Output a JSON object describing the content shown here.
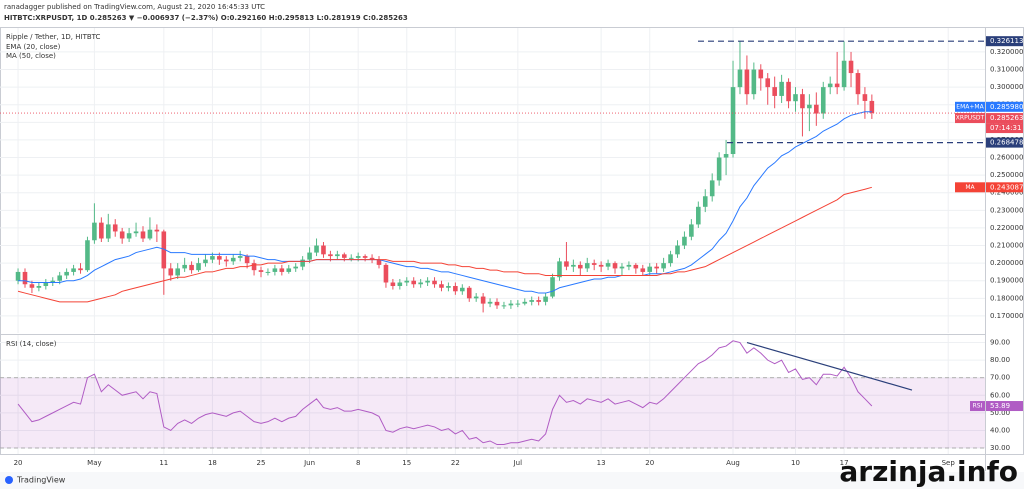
{
  "header": {
    "author_line": "ranadagger published on TradingView.com, August 21, 2020 16:45:33 UTC",
    "symbol_line": "HITBTC:XRPUSDT, 1D 0.285263 ▼ −0.006937 (−2.37%) O:0.292160 H:0.295813 L:0.281919 C:0.285263"
  },
  "footer": {
    "brand": "TradingView",
    "watermark": "arzinja.info"
  },
  "chart_data": [
    {
      "type": "candlestick",
      "title": "Ripple / Tether, 1D, HITBTC",
      "xlim": [
        -2.6,
        139.3
      ],
      "xticks": [
        {
          "value": 0,
          "label": "20"
        },
        {
          "value": 11,
          "label": "May"
        },
        {
          "value": 21,
          "label": "11"
        },
        {
          "value": 28,
          "label": "18"
        },
        {
          "value": 35,
          "label": "25"
        },
        {
          "value": 42,
          "label": "Jun"
        },
        {
          "value": 49,
          "label": "8"
        },
        {
          "value": 56,
          "label": "15"
        },
        {
          "value": 63,
          "label": "22"
        },
        {
          "value": 72,
          "label": "Jul"
        },
        {
          "value": 84,
          "label": "13"
        },
        {
          "value": 91,
          "label": "20"
        },
        {
          "value": 103,
          "label": "Aug"
        },
        {
          "value": 112,
          "label": "10"
        },
        {
          "value": 119,
          "label": "17"
        },
        {
          "value": 134,
          "label": "Sep"
        }
      ],
      "ylim": [
        0.1603,
        0.3336
      ],
      "yticks": [
        {
          "value": 0.17,
          "label": "0.170000"
        },
        {
          "value": 0.18,
          "label": "0.180000"
        },
        {
          "value": 0.19,
          "label": "0.190000"
        },
        {
          "value": 0.2,
          "label": "0.200000"
        },
        {
          "value": 0.21,
          "label": "0.210000"
        },
        {
          "value": 0.22,
          "label": "0.220000"
        },
        {
          "value": 0.23,
          "label": "0.230000"
        },
        {
          "value": 0.24,
          "label": "0.240000"
        },
        {
          "value": 0.25,
          "label": "0.250000"
        },
        {
          "value": 0.26,
          "label": "0.260000"
        },
        {
          "value": 0.27,
          "label": "0.270000"
        },
        {
          "value": 0.28,
          "label": "0.280000"
        },
        {
          "value": 0.29,
          "label": "0.290000"
        },
        {
          "value": 0.3,
          "label": "0.300000"
        },
        {
          "value": 0.31,
          "label": "0.310000"
        },
        {
          "value": 0.32,
          "label": "0.320000"
        }
      ],
      "grid": true,
      "up_color": "#53b987",
      "down_color": "#eb4d5c",
      "open": [
        0.19,
        0.195,
        0.188,
        0.186,
        0.187,
        0.189,
        0.19,
        0.193,
        0.195,
        0.197,
        0.196,
        0.213,
        0.223,
        0.214,
        0.222,
        0.218,
        0.214,
        0.217,
        0.218,
        0.214,
        0.219,
        0.218,
        0.197,
        0.193,
        0.197,
        0.199,
        0.196,
        0.2,
        0.202,
        0.204,
        0.202,
        0.201,
        0.203,
        0.204,
        0.2,
        0.196,
        0.195,
        0.195,
        0.197,
        0.195,
        0.197,
        0.198,
        0.202,
        0.206,
        0.21,
        0.205,
        0.204,
        0.205,
        0.203,
        0.203,
        0.204,
        0.203,
        0.202,
        0.199,
        0.189,
        0.187,
        0.189,
        0.19,
        0.188,
        0.189,
        0.19,
        0.188,
        0.186,
        0.187,
        0.184,
        0.186,
        0.18,
        0.181,
        0.177,
        0.178,
        0.176,
        0.176,
        0.177,
        0.177,
        0.178,
        0.179,
        0.178,
        0.181,
        0.192,
        0.201,
        0.198,
        0.199,
        0.197,
        0.2,
        0.199,
        0.198,
        0.2,
        0.197,
        0.198,
        0.199,
        0.197,
        0.195,
        0.198,
        0.197,
        0.2,
        0.205,
        0.21,
        0.215,
        0.222,
        0.232,
        0.238,
        0.247,
        0.26,
        0.262,
        0.3,
        0.31,
        0.296,
        0.31,
        0.305,
        0.3,
        0.295,
        0.303,
        0.292,
        0.296,
        0.288,
        0.29,
        0.285,
        0.3,
        0.302,
        0.3,
        0.315,
        0.308,
        0.296,
        0.29216
      ],
      "high": [
        0.197,
        0.197,
        0.19,
        0.189,
        0.191,
        0.192,
        0.195,
        0.197,
        0.199,
        0.2,
        0.215,
        0.234,
        0.226,
        0.228,
        0.225,
        0.22,
        0.22,
        0.223,
        0.221,
        0.226,
        0.222,
        0.219,
        0.2,
        0.2,
        0.203,
        0.201,
        0.203,
        0.205,
        0.206,
        0.206,
        0.204,
        0.205,
        0.207,
        0.205,
        0.202,
        0.198,
        0.197,
        0.199,
        0.199,
        0.199,
        0.2,
        0.204,
        0.209,
        0.214,
        0.212,
        0.207,
        0.207,
        0.206,
        0.205,
        0.206,
        0.205,
        0.205,
        0.204,
        0.2,
        0.191,
        0.191,
        0.192,
        0.192,
        0.191,
        0.192,
        0.192,
        0.19,
        0.189,
        0.189,
        0.188,
        0.187,
        0.183,
        0.183,
        0.18,
        0.18,
        0.178,
        0.179,
        0.179,
        0.18,
        0.181,
        0.181,
        0.183,
        0.194,
        0.203,
        0.212,
        0.202,
        0.201,
        0.203,
        0.202,
        0.201,
        0.202,
        0.201,
        0.2,
        0.201,
        0.2,
        0.199,
        0.2,
        0.2,
        0.203,
        0.207,
        0.213,
        0.218,
        0.225,
        0.235,
        0.242,
        0.251,
        0.263,
        0.27,
        0.315,
        0.326,
        0.318,
        0.314,
        0.313,
        0.308,
        0.306,
        0.307,
        0.305,
        0.3,
        0.299,
        0.296,
        0.297,
        0.303,
        0.306,
        0.32,
        0.326,
        0.32,
        0.31,
        0.3,
        0.295813
      ],
      "low": [
        0.188,
        0.186,
        0.183,
        0.184,
        0.185,
        0.187,
        0.188,
        0.191,
        0.193,
        0.194,
        0.195,
        0.211,
        0.212,
        0.212,
        0.215,
        0.211,
        0.212,
        0.215,
        0.212,
        0.213,
        0.212,
        0.182,
        0.19,
        0.191,
        0.195,
        0.194,
        0.195,
        0.198,
        0.2,
        0.199,
        0.198,
        0.199,
        0.201,
        0.197,
        0.193,
        0.192,
        0.193,
        0.193,
        0.193,
        0.194,
        0.195,
        0.196,
        0.2,
        0.204,
        0.203,
        0.201,
        0.202,
        0.201,
        0.201,
        0.201,
        0.201,
        0.2,
        0.197,
        0.186,
        0.185,
        0.185,
        0.187,
        0.186,
        0.186,
        0.187,
        0.186,
        0.184,
        0.184,
        0.182,
        0.182,
        0.178,
        0.178,
        0.172,
        0.175,
        0.174,
        0.174,
        0.174,
        0.175,
        0.176,
        0.176,
        0.176,
        0.176,
        0.18,
        0.19,
        0.196,
        0.195,
        0.193,
        0.195,
        0.196,
        0.195,
        0.196,
        0.194,
        0.193,
        0.196,
        0.194,
        0.193,
        0.193,
        0.194,
        0.195,
        0.198,
        0.203,
        0.208,
        0.213,
        0.22,
        0.229,
        0.235,
        0.244,
        0.25,
        0.26,
        0.296,
        0.29,
        0.293,
        0.298,
        0.29,
        0.288,
        0.291,
        0.288,
        0.286,
        0.272,
        0.275,
        0.278,
        0.282,
        0.296,
        0.296,
        0.298,
        0.3,
        0.29,
        0.282,
        0.281919
      ],
      "close": [
        0.195,
        0.188,
        0.186,
        0.187,
        0.189,
        0.19,
        0.193,
        0.195,
        0.197,
        0.196,
        0.213,
        0.223,
        0.214,
        0.222,
        0.218,
        0.214,
        0.217,
        0.218,
        0.214,
        0.219,
        0.218,
        0.197,
        0.193,
        0.197,
        0.199,
        0.196,
        0.2,
        0.202,
        0.204,
        0.202,
        0.201,
        0.203,
        0.204,
        0.2,
        0.196,
        0.195,
        0.195,
        0.197,
        0.195,
        0.197,
        0.198,
        0.202,
        0.206,
        0.21,
        0.205,
        0.204,
        0.205,
        0.203,
        0.203,
        0.204,
        0.203,
        0.202,
        0.199,
        0.189,
        0.187,
        0.189,
        0.19,
        0.188,
        0.189,
        0.19,
        0.188,
        0.186,
        0.187,
        0.184,
        0.186,
        0.18,
        0.181,
        0.177,
        0.178,
        0.176,
        0.176,
        0.177,
        0.177,
        0.178,
        0.179,
        0.178,
        0.181,
        0.192,
        0.201,
        0.198,
        0.199,
        0.197,
        0.2,
        0.199,
        0.198,
        0.2,
        0.197,
        0.198,
        0.199,
        0.197,
        0.195,
        0.198,
        0.197,
        0.2,
        0.205,
        0.21,
        0.215,
        0.222,
        0.232,
        0.238,
        0.247,
        0.26,
        0.262,
        0.3,
        0.31,
        0.296,
        0.31,
        0.305,
        0.3,
        0.295,
        0.303,
        0.292,
        0.296,
        0.288,
        0.29,
        0.285,
        0.3,
        0.302,
        0.3,
        0.315,
        0.308,
        0.296,
        0.29216,
        0.285263
      ],
      "series": [
        {
          "name": "EMA (20, close)",
          "color": "#2979ff",
          "values": [
            0.19,
            0.19,
            0.189,
            0.189,
            0.189,
            0.189,
            0.189,
            0.19,
            0.19,
            0.191,
            0.193,
            0.196,
            0.198,
            0.2,
            0.202,
            0.203,
            0.204,
            0.206,
            0.207,
            0.208,
            0.209,
            0.208,
            0.206,
            0.206,
            0.206,
            0.205,
            0.205,
            0.205,
            0.205,
            0.205,
            0.205,
            0.205,
            0.205,
            0.204,
            0.204,
            0.203,
            0.202,
            0.202,
            0.201,
            0.201,
            0.201,
            0.201,
            0.201,
            0.202,
            0.202,
            0.202,
            0.202,
            0.202,
            0.202,
            0.202,
            0.202,
            0.202,
            0.202,
            0.201,
            0.2,
            0.199,
            0.198,
            0.198,
            0.197,
            0.197,
            0.196,
            0.195,
            0.195,
            0.194,
            0.193,
            0.192,
            0.191,
            0.19,
            0.189,
            0.188,
            0.187,
            0.186,
            0.185,
            0.184,
            0.184,
            0.183,
            0.183,
            0.184,
            0.186,
            0.187,
            0.188,
            0.189,
            0.19,
            0.191,
            0.191,
            0.192,
            0.192,
            0.193,
            0.193,
            0.193,
            0.193,
            0.194,
            0.194,
            0.194,
            0.195,
            0.196,
            0.197,
            0.199,
            0.202,
            0.205,
            0.208,
            0.213,
            0.217,
            0.224,
            0.232,
            0.237,
            0.244,
            0.249,
            0.254,
            0.257,
            0.261,
            0.263,
            0.266,
            0.268,
            0.27,
            0.272,
            0.275,
            0.277,
            0.279,
            0.282,
            0.284,
            0.285,
            0.286,
            0.28598
          ]
        },
        {
          "name": "MA (50, close)",
          "color": "#f44336",
          "values": [
            0.184,
            0.183,
            0.182,
            0.181,
            0.18,
            0.179,
            0.178,
            0.178,
            0.178,
            0.178,
            0.178,
            0.179,
            0.18,
            0.181,
            0.182,
            0.184,
            0.185,
            0.186,
            0.187,
            0.188,
            0.189,
            0.19,
            0.191,
            0.192,
            0.192,
            0.193,
            0.194,
            0.195,
            0.195,
            0.196,
            0.197,
            0.197,
            0.198,
            0.198,
            0.199,
            0.199,
            0.2,
            0.2,
            0.2,
            0.201,
            0.201,
            0.201,
            0.201,
            0.202,
            0.202,
            0.202,
            0.202,
            0.202,
            0.202,
            0.202,
            0.202,
            0.202,
            0.202,
            0.202,
            0.201,
            0.201,
            0.201,
            0.201,
            0.2,
            0.2,
            0.2,
            0.2,
            0.199,
            0.199,
            0.198,
            0.198,
            0.197,
            0.197,
            0.196,
            0.196,
            0.195,
            0.195,
            0.195,
            0.194,
            0.194,
            0.194,
            0.193,
            0.193,
            0.193,
            0.193,
            0.193,
            0.193,
            0.193,
            0.193,
            0.193,
            0.193,
            0.193,
            0.193,
            0.193,
            0.193,
            0.193,
            0.193,
            0.193,
            0.194,
            0.194,
            0.195,
            0.195,
            0.196,
            0.197,
            0.198,
            0.2,
            0.202,
            0.204,
            0.206,
            0.208,
            0.21,
            0.212,
            0.214,
            0.216,
            0.218,
            0.22,
            0.222,
            0.224,
            0.226,
            0.228,
            0.23,
            0.232,
            0.234,
            0.236,
            0.239,
            0.24,
            0.241,
            0.242,
            0.243087
          ]
        }
      ],
      "levels": [
        0.326113,
        0.268478
      ],
      "last_labels": [
        {
          "name": "EMA+MA",
          "value": 0.28598,
          "label": "0.285980",
          "color": "#2979ff"
        },
        {
          "name": "XRPUSDT",
          "value": 0.285263,
          "timer": "07:14:31",
          "color": "#eb4d5c"
        },
        {
          "name": "MA",
          "value": 0.243087,
          "color": "#f44336"
        }
      ]
    },
    {
      "type": "line",
      "title": "RSI (14, close)",
      "xlim": [
        -2.6,
        139.3
      ],
      "ylim": [
        26.6,
        94.3
      ],
      "yticks": [
        {
          "value": 30,
          "label": "30.00"
        },
        {
          "value": 40,
          "label": "40.00"
        },
        {
          "value": 50,
          "label": "50.00"
        },
        {
          "value": 60,
          "label": "60.00"
        },
        {
          "value": 70,
          "label": "70.00"
        },
        {
          "value": 80,
          "label": "80.00"
        },
        {
          "value": 90,
          "label": "90.00"
        }
      ],
      "grid": true,
      "band": [
        30,
        70
      ],
      "band_color": "#9c27b0",
      "trendline": [
        90,
        63
      ],
      "trendline_color": "#2a3f7a",
      "series": [
        {
          "name": "RSI",
          "color": "#b05cc4",
          "values": [
            55,
            50,
            45,
            46,
            48,
            50,
            52,
            54,
            56,
            55,
            70,
            72,
            62,
            66,
            63,
            60,
            61,
            62,
            58,
            62,
            61,
            42,
            40,
            44,
            46,
            44,
            47,
            49,
            50,
            49,
            48,
            50,
            51,
            48,
            45,
            44,
            45,
            47,
            45,
            47,
            48,
            52,
            55,
            58,
            53,
            52,
            53,
            51,
            51,
            52,
            51,
            50,
            48,
            40,
            39,
            41,
            42,
            41,
            42,
            43,
            42,
            40,
            41,
            38,
            40,
            35,
            36,
            33,
            34,
            32,
            32,
            33,
            33,
            34,
            35,
            34,
            38,
            52,
            60,
            56,
            57,
            55,
            58,
            57,
            56,
            58,
            55,
            56,
            57,
            55,
            53,
            56,
            55,
            58,
            62,
            66,
            70,
            74,
            78,
            80,
            83,
            87,
            88,
            91,
            90,
            84,
            87,
            84,
            80,
            78,
            80,
            73,
            75,
            69,
            70,
            66,
            72,
            72,
            71,
            76,
            70,
            62,
            58,
            53.89
          ]
        }
      ]
    }
  ]
}
